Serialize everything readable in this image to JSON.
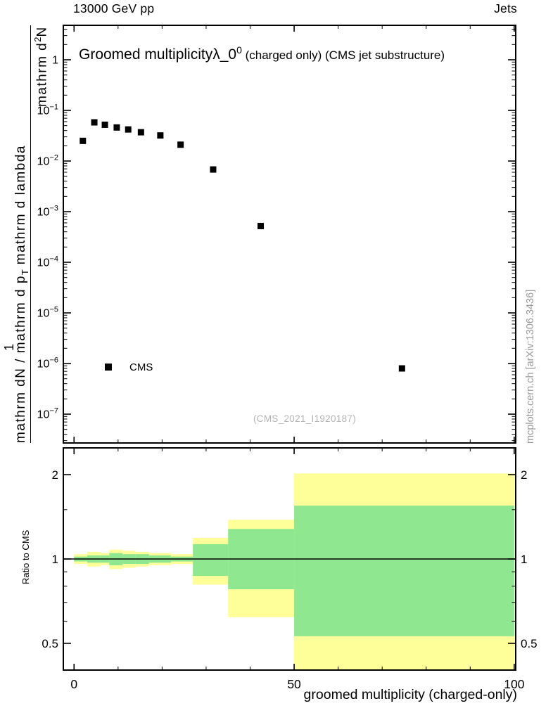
{
  "header": {
    "left": "13000 GeV pp",
    "right": "Jets"
  },
  "title": {
    "main": "Groomed multiplicity",
    "lambda": "λ_0",
    "sup": "0",
    "rest": " (charged only) (CMS jet substructure)"
  },
  "ylabel": {
    "one": "1",
    "num_pre": "mathrm d",
    "num_sup": "2",
    "num_post": "N",
    "den_pre": "mathrm dN / mathrm d p",
    "den_sub": "T",
    "den_post": " mathrm d lambda"
  },
  "legend": {
    "label": "CMS"
  },
  "watermark": "(CMS_2021_I1920187)",
  "credit": "mcplots.cern.ch [arXiv:1306.3436]",
  "ratio": {
    "ylabel": "Ratio to CMS"
  },
  "xlabel": "groomed multiplicity (charged-only)",
  "colors": {
    "yellow": "#ffff99",
    "green": "#8fe88f",
    "marker": "#000000",
    "watermark": "#b3b3b3",
    "credit": "#999999"
  },
  "chart_data": [
    {
      "type": "scatter",
      "name": "cms-data-points",
      "title": "Groomed multiplicity λ_0^0 (charged only) (CMS jet substructure)",
      "marker": "filled-square",
      "x": [
        2.0,
        4.6,
        7.0,
        9.7,
        12.3,
        15.2,
        19.6,
        24.2,
        31.6,
        42.4,
        74.5
      ],
      "y": [
        0.025,
        0.058,
        0.052,
        0.046,
        0.042,
        0.037,
        0.032,
        0.021,
        0.0068,
        0.00052,
        8e-07
      ],
      "xlim": [
        -2.6,
        100.5
      ],
      "ylim": [
        2.6e-08,
        4.95
      ],
      "yscale": "log",
      "ytick_exponents": [
        0,
        -1,
        -2,
        -3,
        -4,
        -5,
        -6,
        -7
      ],
      "xticks": [
        0,
        50,
        100
      ],
      "xminor_step": 10
    },
    {
      "type": "ratio-bands",
      "name": "ratio-to-cms",
      "ylabel": "Ratio to CMS",
      "xlabel": "groomed multiplicity (charged-only)",
      "yscale": "log",
      "ylim": [
        0.397,
        2.52
      ],
      "yticks": [
        2,
        1,
        0.5
      ],
      "yminor": [
        0.6,
        0.7,
        0.8,
        0.9,
        1.5
      ],
      "baseline": 1,
      "bands": [
        {
          "x0": 0,
          "x1": 3,
          "yellow": [
            0.96,
            1.04
          ],
          "green": [
            0.98,
            1.02
          ]
        },
        {
          "x0": 3,
          "x1": 6,
          "yellow": [
            0.94,
            1.06
          ],
          "green": [
            0.97,
            1.03
          ]
        },
        {
          "x0": 6,
          "x1": 8,
          "yellow": [
            0.95,
            1.05
          ],
          "green": [
            0.97,
            1.03
          ]
        },
        {
          "x0": 8,
          "x1": 11,
          "yellow": [
            0.92,
            1.08
          ],
          "green": [
            0.95,
            1.05
          ]
        },
        {
          "x0": 11,
          "x1": 14,
          "yellow": [
            0.93,
            1.07
          ],
          "green": [
            0.96,
            1.04
          ]
        },
        {
          "x0": 14,
          "x1": 17,
          "yellow": [
            0.94,
            1.06
          ],
          "green": [
            0.96,
            1.04
          ]
        },
        {
          "x0": 17,
          "x1": 22,
          "yellow": [
            0.95,
            1.05
          ],
          "green": [
            0.97,
            1.03
          ]
        },
        {
          "x0": 22,
          "x1": 27,
          "yellow": [
            0.96,
            1.04
          ],
          "green": [
            0.98,
            1.02
          ]
        },
        {
          "x0": 27,
          "x1": 35,
          "yellow": [
            0.81,
            1.19
          ],
          "green": [
            0.87,
            1.13
          ]
        },
        {
          "x0": 35,
          "x1": 50,
          "yellow": [
            0.62,
            1.38
          ],
          "green": [
            0.78,
            1.28
          ]
        },
        {
          "x0": 50,
          "x1": 100,
          "yellow": [
            0.4,
            2.02
          ],
          "green": [
            0.53,
            1.55
          ]
        }
      ]
    }
  ]
}
